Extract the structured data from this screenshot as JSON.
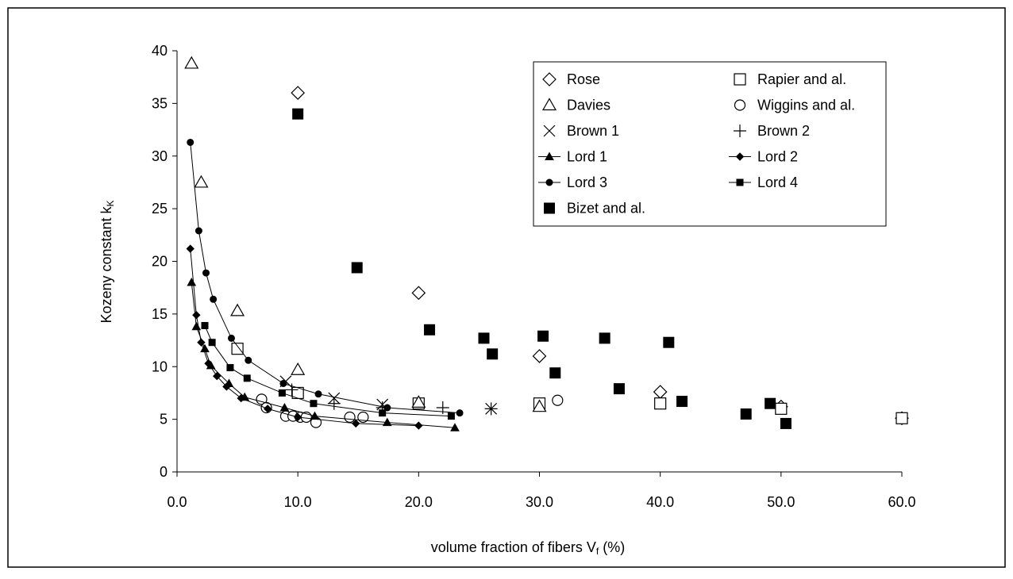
{
  "chart_data": {
    "type": "scatter",
    "xlabel": "volume fraction of fibers V",
    "xlabel_sub": "f",
    "xlabel_unit": "(%)",
    "ylabel": "Kozeny constant k",
    "ylabel_sub": "K",
    "xlim": [
      0,
      60
    ],
    "ylim": [
      0,
      40
    ],
    "xticks": [
      {
        "value": 0,
        "label": "0.0"
      },
      {
        "value": 10,
        "label": "10.0"
      },
      {
        "value": 20,
        "label": "20.0"
      },
      {
        "value": 30,
        "label": "30.0"
      },
      {
        "value": 40,
        "label": "40.0"
      },
      {
        "value": 50,
        "label": "50.0"
      },
      {
        "value": 60,
        "label": "60.0"
      }
    ],
    "yticks": [
      0,
      5,
      10,
      15,
      20,
      25,
      30,
      35,
      40
    ],
    "grid": false,
    "legend": "upper right",
    "series": [
      {
        "name": "Rose",
        "marker": "diamond-open",
        "line": false,
        "color": "#000000",
        "x": [
          10,
          20,
          30,
          40,
          50,
          60
        ],
        "values": [
          36,
          17,
          11,
          7.6,
          6.2,
          5.1
        ]
      },
      {
        "name": "Rapier and al.",
        "marker": "square-open",
        "line": false,
        "color": "#000000",
        "x": [
          5,
          10,
          20,
          30,
          40,
          50,
          60
        ],
        "values": [
          11.7,
          7.5,
          6.5,
          6.5,
          6.5,
          6,
          5.1
        ]
      },
      {
        "name": "Davies",
        "marker": "triangle-open",
        "line": false,
        "color": "#000000",
        "x": [
          1.2,
          2,
          5,
          10,
          20,
          30
        ],
        "values": [
          38.8,
          27.5,
          15.3,
          9.7,
          6.6,
          6.2
        ]
      },
      {
        "name": "Wiggins and al.",
        "marker": "circle-open",
        "line": false,
        "color": "#000000",
        "x": [
          7,
          7.4,
          9,
          9.6,
          10.2,
          10.7,
          11.5,
          14.3,
          15.4,
          31.5
        ],
        "values": [
          6.9,
          6.1,
          5.3,
          5.3,
          5.2,
          5.2,
          4.7,
          5.2,
          5.2,
          6.8
        ]
      },
      {
        "name": "Brown 1",
        "marker": "x",
        "line": false,
        "color": "#000000",
        "x": [
          9,
          13,
          17,
          26
        ],
        "values": [
          8.6,
          7,
          6.4,
          6
        ]
      },
      {
        "name": "Brown 2",
        "marker": "plus",
        "line": false,
        "color": "#000000",
        "x": [
          9.5,
          13,
          17,
          22,
          26
        ],
        "values": [
          7.8,
          6.5,
          6.1,
          6.1,
          6
        ]
      },
      {
        "name": "Lord 1",
        "marker": "triangle",
        "line": true,
        "color": "#000000",
        "x": [
          1.2,
          1.6,
          2.3,
          2.8,
          4.3,
          5.6,
          8.9,
          11.4,
          17.4,
          23
        ],
        "values": [
          18,
          13.8,
          11.7,
          10.1,
          8.4,
          7.1,
          6.1,
          5.3,
          4.7,
          4.2
        ]
      },
      {
        "name": "Lord 2",
        "marker": "diamond",
        "line": true,
        "color": "#000000",
        "x": [
          1.1,
          1.6,
          2,
          2.6,
          3.3,
          4.1,
          5.3,
          7.5,
          10,
          14.8,
          20
        ],
        "values": [
          21.2,
          14.9,
          12.3,
          10.3,
          9.1,
          8.1,
          7,
          6,
          5.2,
          4.6,
          4.4
        ]
      },
      {
        "name": "Lord 3",
        "marker": "circle",
        "line": true,
        "color": "#000000",
        "x": [
          1.1,
          1.8,
          2.4,
          3,
          4.5,
          5.9,
          8.8,
          11.7,
          17.4,
          23.4
        ],
        "values": [
          31.3,
          22.9,
          18.9,
          16.4,
          12.7,
          10.6,
          8.4,
          7.4,
          6.1,
          5.6
        ]
      },
      {
        "name": "Lord 4",
        "marker": "square",
        "line": true,
        "color": "#000000",
        "x": [
          2.3,
          2.9,
          4.4,
          5.8,
          8.7,
          11.3,
          17,
          22.7
        ],
        "values": [
          13.9,
          12.3,
          9.9,
          8.9,
          7.5,
          6.5,
          5.6,
          5.3
        ]
      },
      {
        "name": "Bizet and al.",
        "marker": "big-square",
        "line": false,
        "color": "#000000",
        "x": [
          10,
          14.9,
          20.9,
          25.4,
          26.1,
          30.3,
          31.3,
          35.4,
          36.6,
          40.7,
          41.8,
          47.1,
          49.1,
          50.4
        ],
        "values": [
          34,
          19.4,
          13.5,
          12.7,
          11.2,
          12.9,
          9.4,
          12.7,
          7.9,
          12.3,
          6.7,
          5.5,
          6.5,
          4.6
        ]
      }
    ]
  }
}
